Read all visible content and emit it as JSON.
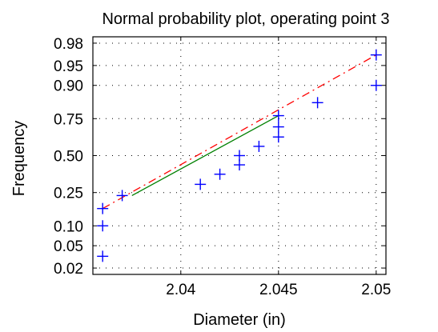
{
  "chart_data": {
    "type": "scatter",
    "title": "Normal probability plot, operating point 3",
    "xlabel": "Diameter (in)",
    "ylabel": "Frequency",
    "xlim": [
      2.0355,
      2.0505
    ],
    "ylim": [
      0.015,
      0.985
    ],
    "y_scale": "normal-probability",
    "grid": true,
    "x_ticks": [
      2.04,
      2.045,
      2.05
    ],
    "x_tick_labels": [
      "2.04",
      "2.045",
      "2.05"
    ],
    "y_ticks": [
      0.02,
      0.05,
      0.1,
      0.25,
      0.5,
      0.75,
      0.9,
      0.95,
      0.98
    ],
    "y_tick_labels": [
      "0.02",
      "0.05",
      "0.10",
      "0.25",
      "0.50",
      "0.75",
      "0.90",
      "0.95",
      "0.98"
    ],
    "points": [
      {
        "x": 2.036,
        "y": 0.033
      },
      {
        "x": 2.036,
        "y": 0.1
      },
      {
        "x": 2.036,
        "y": 0.167
      },
      {
        "x": 2.037,
        "y": 0.233
      },
      {
        "x": 2.041,
        "y": 0.3
      },
      {
        "x": 2.042,
        "y": 0.367
      },
      {
        "x": 2.043,
        "y": 0.433
      },
      {
        "x": 2.043,
        "y": 0.5
      },
      {
        "x": 2.044,
        "y": 0.567
      },
      {
        "x": 2.045,
        "y": 0.633
      },
      {
        "x": 2.045,
        "y": 0.7
      },
      {
        "x": 2.045,
        "y": 0.767
      },
      {
        "x": 2.047,
        "y": 0.833
      },
      {
        "x": 2.05,
        "y": 0.9
      },
      {
        "x": 2.05,
        "y": 0.967
      }
    ],
    "fit_solid": {
      "x": [
        2.0375,
        2.045
      ],
      "y": [
        0.233,
        0.767
      ],
      "color": "#008000"
    },
    "fit_dashed": {
      "x": [
        2.036,
        2.05
      ],
      "y": [
        0.167,
        0.967
      ],
      "color": "#ff0000"
    },
    "marker_color": "#0000ff"
  }
}
